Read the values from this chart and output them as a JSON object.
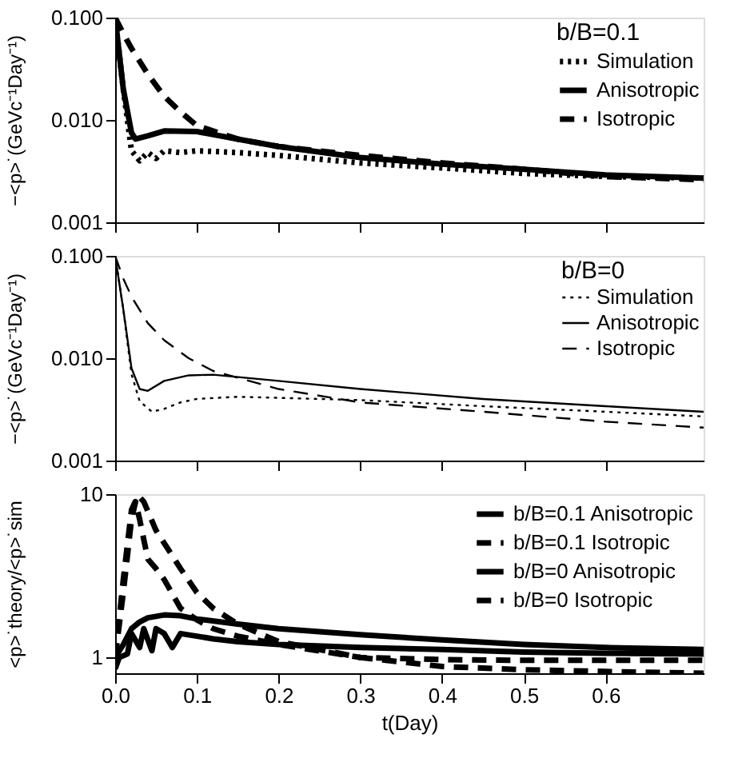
{
  "chart_data": [
    {
      "type": "line",
      "legend_title": "b/B=0.1",
      "ylabel": "−<p>˙(GeVc⁻¹Day⁻¹)",
      "log": "y",
      "xlim": [
        0,
        0.72
      ],
      "xticks": [
        0,
        0.1,
        0.2,
        0.3,
        0.4,
        0.5,
        0.6
      ],
      "ylim": [
        0.001,
        0.1
      ],
      "yticks": [
        {
          "value": 0.001,
          "label": "0.001"
        },
        {
          "value": 0.01,
          "label": "0.010"
        },
        {
          "value": 0.1,
          "label": "0.100"
        }
      ],
      "grid": false,
      "legend": "top right",
      "tick_labels": "y",
      "series": [
        {
          "name": "Simulation",
          "color": "#000000",
          "line_style": "dotted",
          "x": [
            0,
            0.01,
            0.02,
            0.03,
            0.04,
            0.05,
            0.06,
            0.08,
            0.1,
            0.15,
            0.2,
            0.3,
            0.4,
            0.5,
            0.6,
            0.72
          ],
          "values": [
            0.1,
            0.02,
            0.005,
            0.004,
            0.0048,
            0.0042,
            0.005,
            0.0048,
            0.005,
            0.0048,
            0.0045,
            0.0038,
            0.0034,
            0.003,
            0.0028,
            0.0027
          ]
        },
        {
          "name": "Anisotropic",
          "color": "#000000",
          "line_style": "solid",
          "x": [
            0,
            0.01,
            0.02,
            0.025,
            0.04,
            0.06,
            0.1,
            0.15,
            0.2,
            0.3,
            0.4,
            0.5,
            0.6,
            0.72
          ],
          "values": [
            0.1,
            0.02,
            0.0075,
            0.0065,
            0.007,
            0.0078,
            0.0077,
            0.0065,
            0.0055,
            0.0043,
            0.0037,
            0.0033,
            0.0029,
            0.0027
          ]
        },
        {
          "name": "Isotropic",
          "color": "#000000",
          "line_style": "dashed",
          "x": [
            0,
            0.01,
            0.02,
            0.04,
            0.06,
            0.08,
            0.1,
            0.15,
            0.2,
            0.3,
            0.4,
            0.5,
            0.6,
            0.72
          ],
          "values": [
            0.1,
            0.07,
            0.05,
            0.028,
            0.017,
            0.012,
            0.0088,
            0.0065,
            0.0055,
            0.0045,
            0.0038,
            0.0033,
            0.0028,
            0.0026
          ]
        }
      ]
    },
    {
      "type": "line",
      "legend_title": "b/B=0",
      "ylabel": "−<p>˙(GeVc⁻¹Day⁻¹)",
      "log": "y",
      "xlim": [
        0,
        0.72
      ],
      "xticks": [
        0,
        0.1,
        0.2,
        0.3,
        0.4,
        0.5,
        0.6
      ],
      "ylim": [
        0.001,
        0.1
      ],
      "yticks": [
        {
          "value": 0.001,
          "label": "0.001"
        },
        {
          "value": 0.01,
          "label": "0.010"
        },
        {
          "value": 0.1,
          "label": "0.100"
        }
      ],
      "grid": false,
      "legend": "top right",
      "tick_labels": "y",
      "series": [
        {
          "name": "Simulation",
          "color": "#000000",
          "line_style": "dotted",
          "x": [
            0,
            0.01,
            0.02,
            0.03,
            0.045,
            0.06,
            0.08,
            0.1,
            0.15,
            0.2,
            0.3,
            0.45,
            0.6,
            0.72
          ],
          "values": [
            0.1,
            0.03,
            0.007,
            0.0038,
            0.003,
            0.0032,
            0.0037,
            0.004,
            0.0042,
            0.0041,
            0.0039,
            0.0034,
            0.003,
            0.0027
          ]
        },
        {
          "name": "Anisotropic",
          "color": "#000000",
          "line_style": "solid",
          "x": [
            0,
            0.01,
            0.02,
            0.03,
            0.04,
            0.06,
            0.09,
            0.12,
            0.2,
            0.3,
            0.45,
            0.6,
            0.72
          ],
          "values": [
            0.1,
            0.03,
            0.008,
            0.005,
            0.0048,
            0.006,
            0.0068,
            0.0069,
            0.006,
            0.005,
            0.004,
            0.0034,
            0.003
          ]
        },
        {
          "name": "Isotropic",
          "color": "#000000",
          "line_style": "dashed",
          "x": [
            0,
            0.01,
            0.02,
            0.04,
            0.06,
            0.09,
            0.12,
            0.2,
            0.3,
            0.45,
            0.6,
            0.72
          ],
          "values": [
            0.1,
            0.06,
            0.04,
            0.022,
            0.015,
            0.01,
            0.0075,
            0.005,
            0.0037,
            0.003,
            0.0024,
            0.0021
          ]
        }
      ]
    },
    {
      "type": "line",
      "xlabel": "t(Day)",
      "ylabel": "<p>˙theory/<p>˙sim",
      "log": "y",
      "xlim": [
        0,
        0.72
      ],
      "xticks": [
        {
          "value": 0,
          "label": "0.0"
        },
        0.1,
        0.2,
        0.3,
        0.4,
        0.5,
        0.6
      ],
      "ylim": [
        0.8,
        10
      ],
      "yticks": [
        1,
        10
      ],
      "grid": false,
      "legend": "top right",
      "series": [
        {
          "name": "b/B=0.1  Anisotropic",
          "color": "#000000",
          "line_style": "solid",
          "x": [
            0,
            0.005,
            0.015,
            0.02,
            0.03,
            0.035,
            0.045,
            0.05,
            0.06,
            0.07,
            0.08,
            0.1,
            0.12,
            0.15,
            0.2,
            0.3,
            0.4,
            0.5,
            0.6,
            0.72
          ],
          "values": [
            0.85,
            1.0,
            1.05,
            1.4,
            1.15,
            1.5,
            1.1,
            1.5,
            1.4,
            1.15,
            1.4,
            1.35,
            1.3,
            1.25,
            1.2,
            1.15,
            1.12,
            1.08,
            1.06,
            1.05
          ]
        },
        {
          "name": "b/B=0.1  Isotropic",
          "color": "#000000",
          "line_style": "dashed",
          "x": [
            0,
            0.01,
            0.02,
            0.025,
            0.03,
            0.04,
            0.05,
            0.06,
            0.08,
            0.1,
            0.12,
            0.15,
            0.2,
            0.3,
            0.4,
            0.5,
            0.6,
            0.72
          ],
          "values": [
            1.0,
            2.5,
            7,
            9,
            7,
            4,
            3.5,
            3,
            2,
            1.7,
            1.5,
            1.35,
            1.2,
            1.0,
            0.97,
            0.96,
            0.96,
            0.96
          ]
        },
        {
          "name": "b/B=0  Anisotropic",
          "color": "#000000",
          "line_style": "solid",
          "x": [
            0,
            0.01,
            0.02,
            0.03,
            0.04,
            0.06,
            0.08,
            0.1,
            0.15,
            0.2,
            0.3,
            0.4,
            0.5,
            0.6,
            0.72
          ],
          "values": [
            1.0,
            1.2,
            1.5,
            1.65,
            1.75,
            1.82,
            1.8,
            1.72,
            1.6,
            1.5,
            1.38,
            1.28,
            1.2,
            1.15,
            1.12
          ]
        },
        {
          "name": "b/B=0  Isotropic",
          "color": "#000000",
          "line_style": "dashed",
          "x": [
            0,
            0.01,
            0.02,
            0.028,
            0.035,
            0.05,
            0.08,
            0.1,
            0.12,
            0.15,
            0.2,
            0.3,
            0.4,
            0.5,
            0.6,
            0.72
          ],
          "values": [
            1.0,
            3,
            8,
            9.8,
            9,
            6,
            3.5,
            2.5,
            2,
            1.6,
            1.25,
            1.0,
            0.88,
            0.84,
            0.82,
            0.8
          ]
        }
      ]
    }
  ]
}
